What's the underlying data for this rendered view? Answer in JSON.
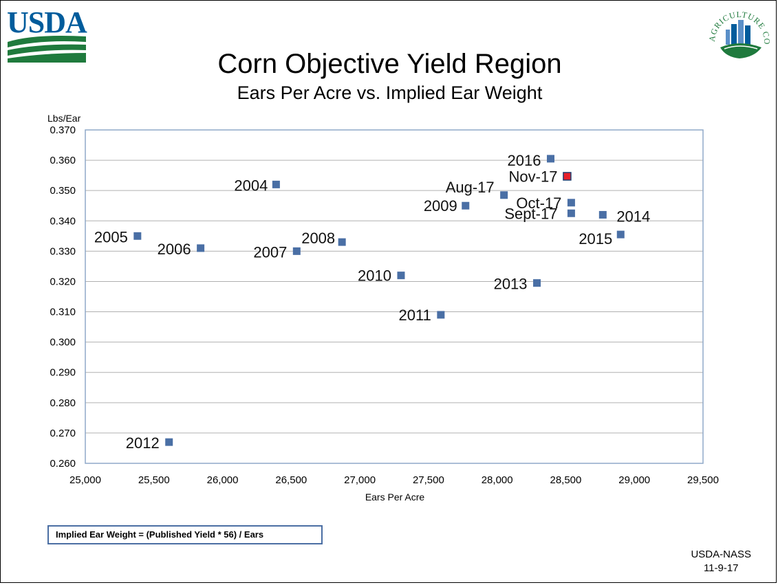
{
  "header": {
    "logo_text": "USDA",
    "seal_text": "AGRICULTURE COUNTS"
  },
  "footer": {
    "formula": "Implied Ear Weight = (Published Yield * 56) / Ears",
    "source_line1": "USDA-NASS",
    "source_line2": "11-9-17"
  },
  "colors": {
    "marker": "#4a6fa5",
    "highlight": "#e8202a",
    "grid": "#b0b0b0",
    "usda_blue": "#005c9c",
    "usda_green": "#1f7a3d",
    "plot_border": "#8fa8c8"
  },
  "chart_data": {
    "type": "scatter",
    "title": "Corn Objective Yield Region",
    "subtitle": "Ears Per Acre vs. Implied Ear Weight",
    "xlabel": "Ears Per Acre",
    "ylabel": "Lbs/Ear",
    "xlim": [
      25000,
      29500
    ],
    "ylim": [
      0.26,
      0.37
    ],
    "x_ticks": [
      "25,000",
      "25,500",
      "26,000",
      "26,500",
      "27,000",
      "27,500",
      "28,000",
      "28,500",
      "29,000",
      "29,500"
    ],
    "y_ticks": [
      "0.260",
      "0.270",
      "0.280",
      "0.290",
      "0.300",
      "0.310",
      "0.320",
      "0.330",
      "0.340",
      "0.350",
      "0.360",
      "0.370"
    ],
    "grid": "horizontal",
    "legend": "none",
    "points": [
      {
        "label": "2004",
        "x": 26390,
        "y": 0.352,
        "highlight": false
      },
      {
        "label": "2005",
        "x": 25380,
        "y": 0.335,
        "highlight": false
      },
      {
        "label": "2006",
        "x": 25840,
        "y": 0.331,
        "highlight": false
      },
      {
        "label": "2007",
        "x": 26540,
        "y": 0.33,
        "highlight": false
      },
      {
        "label": "2008",
        "x": 26870,
        "y": 0.333,
        "highlight": false
      },
      {
        "label": "2009",
        "x": 27770,
        "y": 0.345,
        "highlight": false
      },
      {
        "label": "2010",
        "x": 27300,
        "y": 0.322,
        "highlight": false
      },
      {
        "label": "2011",
        "x": 27590,
        "y": 0.309,
        "highlight": false
      },
      {
        "label": "2012",
        "x": 25610,
        "y": 0.267,
        "highlight": false
      },
      {
        "label": "2013",
        "x": 28290,
        "y": 0.3195,
        "highlight": false
      },
      {
        "label": "2014",
        "x": 28770,
        "y": 0.342,
        "highlight": false
      },
      {
        "label": "2015",
        "x": 28900,
        "y": 0.3355,
        "highlight": false
      },
      {
        "label": "2016",
        "x": 28390,
        "y": 0.3605,
        "highlight": false
      },
      {
        "label": "Aug-17",
        "x": 28050,
        "y": 0.3485,
        "highlight": false
      },
      {
        "label": "Sept-17",
        "x": 28540,
        "y": 0.3425,
        "highlight": false
      },
      {
        "label": "Oct-17",
        "x": 28540,
        "y": 0.346,
        "highlight": false
      },
      {
        "label": "Nov-17",
        "x": 28510,
        "y": 0.3547,
        "highlight": true
      }
    ]
  }
}
